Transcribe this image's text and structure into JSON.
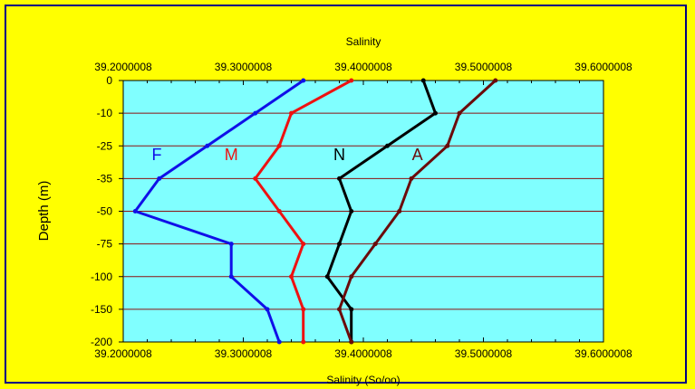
{
  "chart_data": {
    "type": "line",
    "title": "Salinity",
    "xlabel": "Salinity (So/oo)",
    "ylabel": "Depth (m)",
    "xlim": [
      39.2000008,
      39.6000008
    ],
    "x_ticks": [
      "39.2000008",
      "39.3000008",
      "39.4000008",
      "39.5000008",
      "39.6000008"
    ],
    "y_categories": [
      "0",
      "-10",
      "-25",
      "-35",
      "-50",
      "-75",
      "-100",
      "-150",
      "-200"
    ],
    "series": [
      {
        "name": "F",
        "color": "#1010e8",
        "values": [
          39.35,
          39.31,
          39.27,
          39.23,
          39.21,
          39.29,
          39.29,
          39.32,
          39.33
        ]
      },
      {
        "name": "M",
        "color": "#ee1111",
        "values": [
          39.39,
          39.34,
          39.33,
          39.31,
          39.33,
          39.35,
          39.34,
          39.35,
          39.35
        ]
      },
      {
        "name": "N",
        "color": "#000000",
        "values": [
          39.45,
          39.46,
          39.42,
          39.38,
          39.39,
          39.38,
          39.37,
          39.39,
          39.39
        ]
      },
      {
        "name": "A",
        "color": "#6b0a0a",
        "values": [
          39.51,
          39.48,
          39.47,
          39.44,
          39.43,
          39.41,
          39.39,
          39.38,
          39.39
        ]
      }
    ],
    "grid": true,
    "plot_background": "#80ffff",
    "page_background": "#ffff00",
    "grid_color": "#8b1010"
  }
}
